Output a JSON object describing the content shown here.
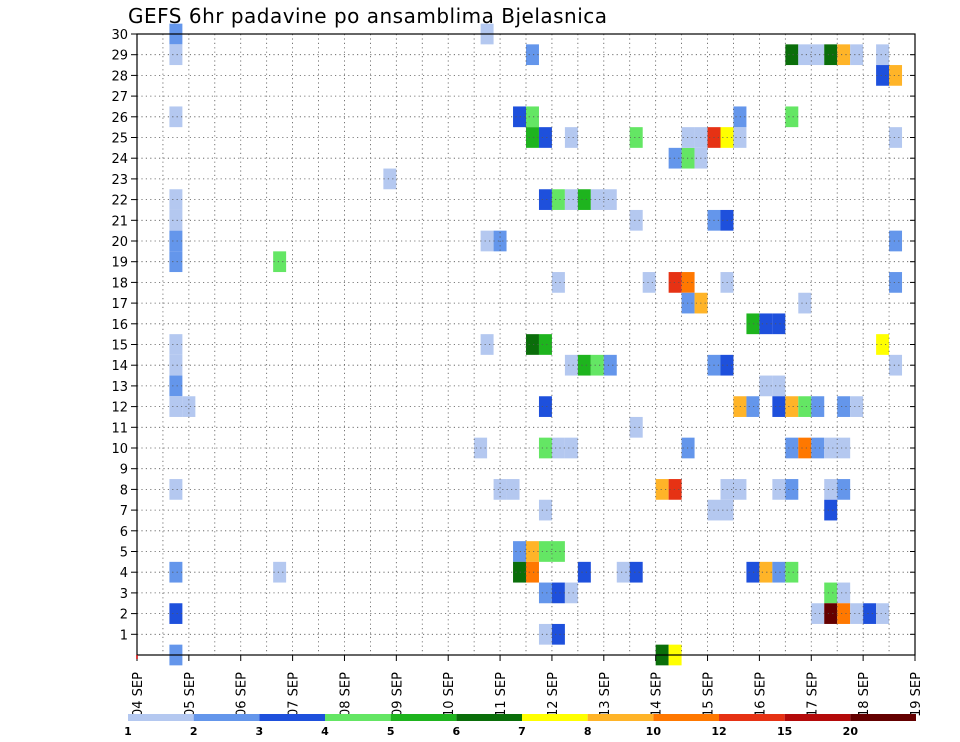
{
  "chart_data": {
    "type": "heatmap",
    "title": "GEFS 6hr padavine po ansamblima Bjelasnica",
    "x_ticks": [
      "04 SEP",
      "05 SEP",
      "06 SEP",
      "07 SEP",
      "08 SEP",
      "09 SEP",
      "10 SEP",
      "11 SEP",
      "12 SEP",
      "13 SEP",
      "14 SEP",
      "15 SEP",
      "16 SEP",
      "17 SEP",
      "18 SEP",
      "19 SEP"
    ],
    "y_ticks": [
      1,
      2,
      3,
      4,
      5,
      6,
      7,
      8,
      9,
      10,
      11,
      12,
      13,
      14,
      15,
      16,
      17,
      18,
      19,
      20,
      21,
      22,
      23,
      24,
      25,
      26,
      27,
      28,
      29,
      30
    ],
    "x_range_days": [
      4,
      19
    ],
    "y_range": [
      0,
      30
    ],
    "grid": true,
    "colorbar": {
      "position": "bottom",
      "labels": [
        "1",
        "2",
        "3",
        "4",
        "5",
        "6",
        "7",
        "8",
        "10",
        "12",
        "15",
        "20"
      ],
      "colors": [
        "#b4c8f0",
        "#6496eb",
        "#1e50dc",
        "#64e664",
        "#1eb41e",
        "#0a6e0a",
        "#ffff00",
        "#ffb428",
        "#ff7800",
        "#e63214",
        "#b40a0a",
        "#640000"
      ]
    },
    "cells": [
      [
        4.75,
        30,
        1
      ],
      [
        4.75,
        29,
        0
      ],
      [
        4.75,
        26,
        0
      ],
      [
        4.75,
        22,
        0
      ],
      [
        4.75,
        21,
        0
      ],
      [
        4.75,
        20,
        1
      ],
      [
        4.75,
        19,
        1
      ],
      [
        4.75,
        15,
        0
      ],
      [
        4.75,
        14,
        0
      ],
      [
        4.75,
        13,
        1
      ],
      [
        4.75,
        12,
        0
      ],
      [
        5.0,
        12,
        0
      ],
      [
        4.75,
        8,
        0
      ],
      [
        4.75,
        4,
        1
      ],
      [
        4.75,
        2,
        2
      ],
      [
        4.75,
        0,
        1
      ],
      [
        6.75,
        19,
        3
      ],
      [
        6.75,
        4,
        0
      ],
      [
        8.875,
        23,
        0
      ],
      [
        10.75,
        30,
        0
      ],
      [
        10.625,
        10,
        0
      ],
      [
        10.75,
        20,
        0
      ],
      [
        11.0,
        20,
        1
      ],
      [
        10.75,
        15,
        0
      ],
      [
        11.0,
        8,
        0
      ],
      [
        11.25,
        8,
        0
      ],
      [
        11.625,
        29,
        1
      ],
      [
        11.375,
        26,
        2
      ],
      [
        11.625,
        26,
        3
      ],
      [
        11.625,
        25,
        4
      ],
      [
        11.875,
        25,
        2
      ],
      [
        11.875,
        22,
        2
      ],
      [
        12.125,
        22,
        3
      ],
      [
        12.375,
        22,
        0
      ],
      [
        12.625,
        22,
        4
      ],
      [
        12.875,
        22,
        0
      ],
      [
        13.125,
        22,
        0
      ],
      [
        11.625,
        15,
        5
      ],
      [
        11.875,
        15,
        4
      ],
      [
        11.875,
        12,
        2
      ],
      [
        11.875,
        10,
        3
      ],
      [
        12.125,
        10,
        0
      ],
      [
        12.375,
        10,
        0
      ],
      [
        11.875,
        7,
        0
      ],
      [
        11.375,
        5,
        1
      ],
      [
        11.625,
        5,
        7
      ],
      [
        11.875,
        5,
        3
      ],
      [
        12.125,
        5,
        3
      ],
      [
        11.375,
        4,
        5
      ],
      [
        11.625,
        4,
        8
      ],
      [
        11.875,
        3,
        1
      ],
      [
        12.125,
        3,
        2
      ],
      [
        12.375,
        3,
        0
      ],
      [
        12.625,
        4,
        2
      ],
      [
        11.875,
        1,
        0
      ],
      [
        12.125,
        1,
        2
      ],
      [
        12.375,
        25,
        0
      ],
      [
        12.125,
        18,
        0
      ],
      [
        12.375,
        14,
        0
      ],
      [
        12.625,
        14,
        4
      ],
      [
        12.875,
        14,
        3
      ],
      [
        13.125,
        14,
        1
      ],
      [
        13.625,
        25,
        3
      ],
      [
        13.625,
        21,
        0
      ],
      [
        13.625,
        11,
        0
      ],
      [
        13.375,
        4,
        0
      ],
      [
        13.625,
        4,
        2
      ],
      [
        13.875,
        18,
        0
      ],
      [
        14.125,
        8,
        7
      ],
      [
        14.375,
        8,
        9
      ],
      [
        14.125,
        0,
        5
      ],
      [
        14.375,
        0,
        6
      ],
      [
        14.375,
        24,
        1
      ],
      [
        14.625,
        24,
        3
      ],
      [
        14.875,
        24,
        0
      ],
      [
        14.625,
        25,
        0
      ],
      [
        14.875,
        25,
        0
      ],
      [
        15.125,
        25,
        9
      ],
      [
        15.375,
        25,
        6
      ],
      [
        15.625,
        25,
        0
      ],
      [
        14.375,
        18,
        9
      ],
      [
        14.625,
        18,
        8
      ],
      [
        14.625,
        17,
        1
      ],
      [
        14.875,
        17,
        7
      ],
      [
        14.625,
        10,
        1
      ],
      [
        15.125,
        21,
        1
      ],
      [
        15.375,
        21,
        2
      ],
      [
        15.125,
        14,
        1
      ],
      [
        15.375,
        14,
        2
      ],
      [
        15.375,
        18,
        0
      ],
      [
        15.125,
        7,
        0
      ],
      [
        15.375,
        7,
        0
      ],
      [
        15.375,
        8,
        0
      ],
      [
        15.625,
        8,
        0
      ],
      [
        15.625,
        26,
        1
      ],
      [
        15.625,
        12,
        7
      ],
      [
        15.875,
        12,
        1
      ],
      [
        15.875,
        16,
        4
      ],
      [
        16.125,
        16,
        2
      ],
      [
        16.375,
        16,
        2
      ],
      [
        16.125,
        13,
        0
      ],
      [
        16.375,
        13,
        0
      ],
      [
        15.875,
        4,
        2
      ],
      [
        16.125,
        4,
        7
      ],
      [
        16.375,
        4,
        1
      ],
      [
        16.625,
        4,
        3
      ],
      [
        16.375,
        12,
        2
      ],
      [
        16.625,
        12,
        7
      ],
      [
        16.875,
        12,
        3
      ],
      [
        17.125,
        12,
        1
      ],
      [
        16.875,
        17,
        0
      ],
      [
        16.625,
        29,
        5
      ],
      [
        16.875,
        29,
        0
      ],
      [
        17.125,
        29,
        0
      ],
      [
        17.375,
        29,
        5
      ],
      [
        17.625,
        29,
        7
      ],
      [
        17.875,
        29,
        0
      ],
      [
        16.625,
        26,
        3
      ],
      [
        16.625,
        10,
        1
      ],
      [
        16.875,
        10,
        8
      ],
      [
        17.125,
        10,
        1
      ],
      [
        17.375,
        10,
        0
      ],
      [
        17.625,
        10,
        0
      ],
      [
        16.375,
        8,
        0
      ],
      [
        16.625,
        8,
        1
      ],
      [
        17.375,
        8,
        0
      ],
      [
        17.625,
        8,
        1
      ],
      [
        17.375,
        7,
        2
      ],
      [
        17.375,
        3,
        3
      ],
      [
        17.625,
        3,
        0
      ],
      [
        17.125,
        2,
        0
      ],
      [
        17.375,
        2,
        11
      ],
      [
        17.625,
        2,
        8
      ],
      [
        17.875,
        2,
        0
      ],
      [
        18.125,
        2,
        2
      ],
      [
        18.375,
        2,
        0
      ],
      [
        17.625,
        12,
        1
      ],
      [
        17.875,
        12,
        0
      ],
      [
        18.375,
        29,
        0
      ],
      [
        18.375,
        28,
        2
      ],
      [
        18.625,
        28,
        7
      ],
      [
        18.375,
        15,
        6
      ],
      [
        18.625,
        25,
        0
      ],
      [
        18.625,
        20,
        1
      ],
      [
        18.625,
        18,
        1
      ],
      [
        18.625,
        14,
        0
      ]
    ]
  }
}
